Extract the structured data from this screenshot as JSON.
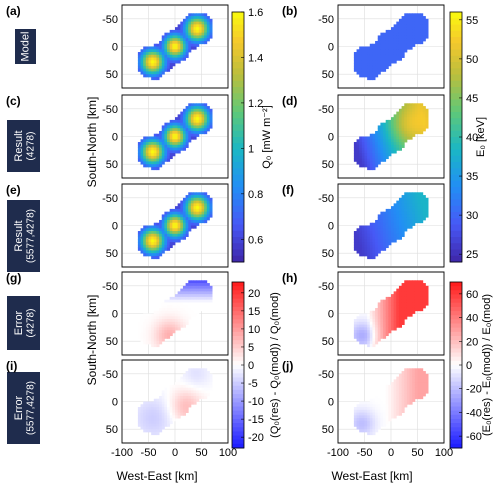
{
  "chart_data": {
    "type": "heatmap",
    "panels": [
      {
        "id": "a",
        "letter": "(a)",
        "row_label": [
          "Model"
        ],
        "quantity": "Q0",
        "kind": "model_q"
      },
      {
        "id": "b",
        "letter": "(b)",
        "quantity": "E0",
        "kind": "model_e"
      },
      {
        "id": "c",
        "letter": "(c)",
        "row_label": [
          "Result",
          "(4278)"
        ],
        "quantity": "Q0",
        "kind": "res_q"
      },
      {
        "id": "d",
        "letter": "(d)",
        "quantity": "E0",
        "kind": "res_e4278"
      },
      {
        "id": "e",
        "letter": "(e)",
        "row_label": [
          "Result",
          "(5577,4278)"
        ],
        "quantity": "Q0",
        "kind": "res_q"
      },
      {
        "id": "f",
        "letter": "(f)",
        "quantity": "E0",
        "kind": "res_e5577"
      },
      {
        "id": "g",
        "letter": "(g)",
        "row_label": [
          "Error",
          "(4278)"
        ],
        "quantity": "Q0 relative error",
        "kind": "err_q4278"
      },
      {
        "id": "h",
        "letter": "(h)",
        "quantity": "E0 relative error",
        "kind": "err_e4278"
      },
      {
        "id": "i",
        "letter": "(i)",
        "row_label": [
          "Error",
          "(5577,4278)"
        ],
        "quantity": "Q0 relative error",
        "kind": "err_q5577"
      },
      {
        "id": "j",
        "letter": "(j)",
        "quantity": "E0 relative error",
        "kind": "err_e5577"
      }
    ],
    "x_axis": {
      "label": "West-East [km]",
      "ticks": [
        -100,
        -50,
        0,
        50,
        100
      ],
      "range": [
        -100,
        100
      ]
    },
    "y_axis": {
      "label": "South-North [km]",
      "ticks": [
        -50,
        0,
        50
      ],
      "range": [
        -75,
        75
      ],
      "inverted": true
    },
    "colorbars": [
      {
        "id": "q0",
        "label": "Q₀ [mW m⁻²]",
        "ticks": [
          0.6,
          0.8,
          1,
          1.2,
          1.4,
          1.6
        ],
        "tick_labels": [
          "0.6",
          "0.8",
          "1",
          "1.2",
          "1.4",
          "1.6"
        ],
        "range": [
          0.5,
          1.6
        ],
        "colormap": "parula"
      },
      {
        "id": "e0",
        "label": "E₀ [keV]",
        "ticks": [
          25,
          30,
          35,
          40,
          45,
          50,
          55
        ],
        "tick_labels": [
          "25",
          "30",
          "35",
          "40",
          "45",
          "50",
          "55"
        ],
        "range": [
          24,
          56
        ],
        "colormap": "parula"
      },
      {
        "id": "qerr",
        "label": "(Q₀(res) - Q₀(mod)) / Q₀(mod)",
        "ticks": [
          -20,
          -15,
          -10,
          -5,
          0,
          5,
          10,
          15,
          20
        ],
        "tick_labels": [
          "-20",
          "-15",
          "-10",
          "-5",
          "0",
          "5",
          "10",
          "15",
          "20"
        ],
        "range": [
          -23,
          23
        ],
        "colormap": "blue-white-red"
      },
      {
        "id": "eerr",
        "label": "(E₀(res) - E₀(mod)) / E₀(mod)",
        "ticks": [
          -60,
          -40,
          -20,
          0,
          20,
          40,
          60
        ],
        "tick_labels": [
          "-60",
          "-40",
          "-20",
          "0",
          "20",
          "40",
          "60"
        ],
        "range": [
          -70,
          70
        ],
        "colormap": "blue-white-red"
      }
    ],
    "grid": true
  },
  "colors": {
    "row_label_bg": "#1f2c4d",
    "row_label_fg": "#ffffff",
    "map_background": "#ffffff",
    "grid": "#dddddd"
  }
}
